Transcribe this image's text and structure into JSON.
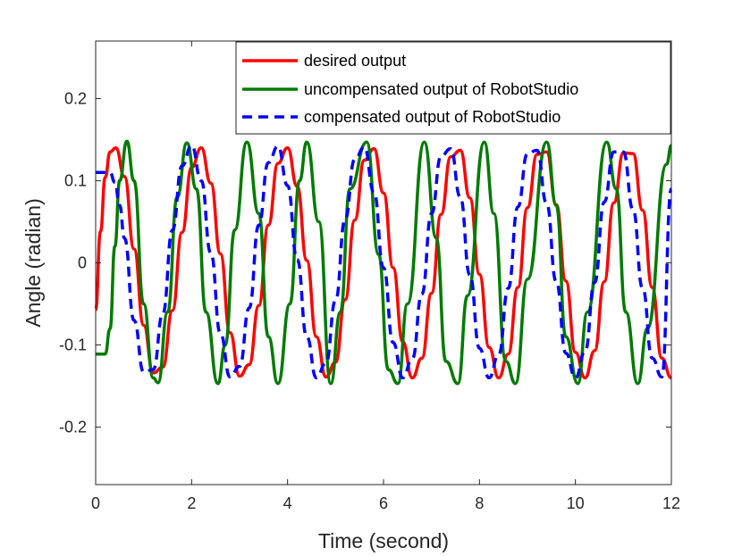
{
  "chart_data": {
    "type": "line",
    "title": "",
    "xlabel": "Time (second)",
    "ylabel": "Angle (radian)",
    "xlim": [
      0,
      12
    ],
    "ylim": [
      -0.27,
      0.27
    ],
    "xticks": [
      0,
      2,
      4,
      6,
      8,
      10,
      12
    ],
    "xtick_labels": [
      "0",
      "2",
      "4",
      "6",
      "8",
      "10",
      "12"
    ],
    "yticks": [
      -0.2,
      -0.1,
      0,
      0.1,
      0.2
    ],
    "ytick_labels": [
      "-0.2",
      "-0.1",
      "0",
      "0.1",
      "0.2"
    ],
    "grid": false,
    "legend_position": "top-right",
    "series": [
      {
        "name": "desired output",
        "color": "#ff0000",
        "style": "solid",
        "x": [
          0,
          0.1,
          0.2,
          0.3,
          0.42,
          0.6,
          0.8,
          1.0,
          1.2,
          1.4,
          1.6,
          1.8,
          2.0,
          2.2,
          2.4,
          2.6,
          2.8,
          3.0,
          3.2,
          3.4,
          3.6,
          3.8,
          4.0,
          4.2,
          4.4,
          4.6,
          4.8,
          5.0,
          5.2,
          5.4,
          5.6,
          5.8,
          6.0,
          6.2,
          6.4,
          6.6,
          6.8,
          7.0,
          7.2,
          7.4,
          7.6,
          7.8,
          8.0,
          8.2,
          8.4,
          8.6,
          8.8,
          9.0,
          9.2,
          9.4,
          9.6,
          9.8,
          10.0,
          10.2,
          10.4,
          10.6,
          10.8,
          11.0,
          11.2,
          11.4,
          11.6,
          11.8,
          12.0
        ],
        "y": [
          -0.057,
          0.038,
          0.104,
          0.135,
          0.14,
          0.105,
          0.017,
          -0.076,
          -0.134,
          -0.127,
          -0.058,
          0.037,
          0.116,
          0.14,
          0.097,
          0.011,
          -0.085,
          -0.138,
          -0.124,
          -0.052,
          0.046,
          0.121,
          0.14,
          0.093,
          0.003,
          -0.09,
          -0.139,
          -0.121,
          -0.045,
          0.052,
          0.125,
          0.139,
          0.085,
          -0.006,
          -0.096,
          -0.14,
          -0.116,
          -0.037,
          0.059,
          0.129,
          0.137,
          0.079,
          -0.014,
          -0.103,
          -0.14,
          -0.111,
          -0.03,
          0.067,
          0.132,
          0.135,
          0.071,
          -0.022,
          -0.109,
          -0.14,
          -0.107,
          -0.023,
          0.073,
          0.134,
          0.133,
          0.064,
          -0.03,
          -0.116,
          -0.14
        ]
      },
      {
        "name": "uncompensated output of RobotStudio",
        "color": "#007a00",
        "style": "solid",
        "x": [
          0,
          0.2,
          0.3,
          0.4,
          0.5,
          0.65,
          0.8,
          1.0,
          1.2,
          1.3,
          1.5,
          1.7,
          1.9,
          2.1,
          2.3,
          2.55,
          2.7,
          2.9,
          3.15,
          3.4,
          3.6,
          3.8,
          4.05,
          4.25,
          4.4,
          4.65,
          4.9,
          5.1,
          5.3,
          5.65,
          5.9,
          6.1,
          6.3,
          6.5,
          6.85,
          7.1,
          7.3,
          7.55,
          7.75,
          8.1,
          8.3,
          8.55,
          8.75,
          9.0,
          9.4,
          9.6,
          9.8,
          10.05,
          10.25,
          10.65,
          10.85,
          11.05,
          11.3,
          11.5,
          11.9,
          12.0
        ],
        "y": [
          -0.111,
          -0.111,
          -0.08,
          0.02,
          0.1,
          0.148,
          0.1,
          -0.05,
          -0.14,
          -0.146,
          -0.06,
          0.08,
          0.146,
          0.09,
          -0.06,
          -0.147,
          -0.1,
          0.04,
          0.147,
          0.06,
          -0.09,
          -0.147,
          -0.05,
          0.1,
          0.147,
          0.05,
          -0.147,
          -0.06,
          0.09,
          0.147,
          0.01,
          -0.13,
          -0.147,
          -0.05,
          0.147,
          0.03,
          -0.12,
          -0.147,
          -0.04,
          0.147,
          0.06,
          -0.12,
          -0.147,
          -0.02,
          0.147,
          0.07,
          -0.09,
          -0.147,
          -0.06,
          0.147,
          0.09,
          -0.06,
          -0.147,
          -0.08,
          0.12,
          0.143
        ]
      },
      {
        "name": "compensated output of RobotStudio",
        "color": "#0000ff",
        "style": "dashed",
        "x": [
          0,
          0.3,
          0.4,
          0.5,
          0.6,
          0.8,
          1.0,
          1.2,
          1.4,
          1.6,
          1.8,
          2.0,
          2.2,
          2.4,
          2.6,
          2.8,
          3.0,
          3.2,
          3.4,
          3.6,
          3.8,
          4.0,
          4.2,
          4.4,
          4.6,
          4.8,
          5.0,
          5.2,
          5.4,
          5.6,
          5.8,
          6.0,
          6.2,
          6.4,
          6.6,
          6.8,
          7.0,
          7.2,
          7.4,
          7.6,
          7.8,
          8.0,
          8.2,
          8.4,
          8.6,
          8.8,
          9.0,
          9.2,
          9.4,
          9.6,
          9.8,
          10.0,
          10.2,
          10.4,
          10.6,
          10.8,
          11.0,
          11.2,
          11.4,
          11.6,
          11.8,
          12.0
        ],
        "y": [
          0.11,
          0.11,
          0.098,
          0.07,
          0.03,
          -0.07,
          -0.133,
          -0.13,
          -0.062,
          0.04,
          0.118,
          0.143,
          0.1,
          0.012,
          -0.086,
          -0.139,
          -0.126,
          -0.055,
          0.046,
          0.122,
          0.142,
          0.094,
          0.004,
          -0.09,
          -0.14,
          -0.122,
          -0.046,
          0.053,
          0.126,
          0.141,
          0.086,
          -0.006,
          -0.097,
          -0.14,
          -0.117,
          -0.038,
          0.06,
          0.13,
          0.139,
          0.08,
          -0.015,
          -0.104,
          -0.14,
          -0.112,
          -0.031,
          0.068,
          0.133,
          0.137,
          0.072,
          -0.023,
          -0.11,
          -0.14,
          -0.108,
          -0.024,
          0.074,
          0.135,
          0.135,
          0.065,
          -0.031,
          -0.116,
          -0.139,
          0.09
        ]
      }
    ]
  }
}
